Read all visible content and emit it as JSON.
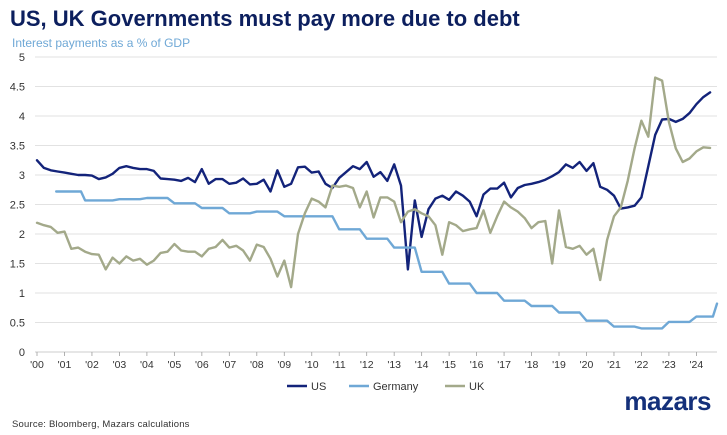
{
  "header": {
    "title": "US, UK Governments must pay more due to debt",
    "subtitle": "Interest payments as a % of GDP"
  },
  "footer": {
    "source": "Source: Bloomberg, Mazars calculations",
    "logo_text": "mazars"
  },
  "colors": {
    "title": "#0c1f5e",
    "subtitle": "#6fa8d6",
    "logo": "#14307a",
    "grid": "#d9d9d9"
  },
  "chart_data": {
    "type": "line",
    "title": "US, UK Governments must pay more due to debt",
    "subtitle": "Interest payments as a % of GDP",
    "xlabel": "",
    "ylabel": "",
    "xlim": [
      2000,
      2024.75
    ],
    "ylim": [
      0,
      5
    ],
    "yticks": [
      "0",
      "0.5",
      "1",
      "1.5",
      "2",
      "2.5",
      "3",
      "3.5",
      "4",
      "4.5",
      "5"
    ],
    "xticks": [
      "'00",
      "'01",
      "'02",
      "'03",
      "'04",
      "'05",
      "'06",
      "'07",
      "'08",
      "'09",
      "'10",
      "'11",
      "'12",
      "'13",
      "'14",
      "'15",
      "'16",
      "'17",
      "'18",
      "'19",
      "'20",
      "'21",
      "'22",
      "'23",
      "'24"
    ],
    "grid": "horizontal",
    "legend": "bottom-center",
    "series": [
      {
        "name": "US",
        "color": "#13237a",
        "points": [
          [
            2000,
            3.25
          ],
          [
            2000.25,
            3.12
          ],
          [
            2000.5,
            3.08
          ],
          [
            2000.75,
            3.06
          ],
          [
            2001,
            3.04
          ],
          [
            2001.25,
            3.02
          ],
          [
            2001.5,
            3.0
          ],
          [
            2001.75,
            3.0
          ],
          [
            2002,
            2.99
          ],
          [
            2002.25,
            2.93
          ],
          [
            2002.5,
            2.96
          ],
          [
            2002.75,
            3.02
          ],
          [
            2003,
            3.12
          ],
          [
            2003.25,
            3.15
          ],
          [
            2003.5,
            3.12
          ],
          [
            2003.75,
            3.1
          ],
          [
            2004,
            3.1
          ],
          [
            2004.25,
            3.07
          ],
          [
            2004.5,
            2.94
          ],
          [
            2004.75,
            2.93
          ],
          [
            2005,
            2.92
          ],
          [
            2005.25,
            2.9
          ],
          [
            2005.5,
            2.95
          ],
          [
            2005.75,
            2.88
          ],
          [
            2006,
            3.1
          ],
          [
            2006.25,
            2.85
          ],
          [
            2006.5,
            2.93
          ],
          [
            2006.75,
            2.93
          ],
          [
            2007,
            2.85
          ],
          [
            2007.25,
            2.87
          ],
          [
            2007.5,
            2.94
          ],
          [
            2007.75,
            2.84
          ],
          [
            2008,
            2.85
          ],
          [
            2008.25,
            2.92
          ],
          [
            2008.5,
            2.72
          ],
          [
            2008.75,
            3.08
          ],
          [
            2009,
            2.8
          ],
          [
            2009.25,
            2.85
          ],
          [
            2009.5,
            3.13
          ],
          [
            2009.75,
            3.14
          ],
          [
            2010,
            3.04
          ],
          [
            2010.25,
            3.06
          ],
          [
            2010.5,
            2.85
          ],
          [
            2010.75,
            2.78
          ],
          [
            2011,
            2.95
          ],
          [
            2011.25,
            3.05
          ],
          [
            2011.5,
            3.15
          ],
          [
            2011.75,
            3.1
          ],
          [
            2012,
            3.22
          ],
          [
            2012.25,
            2.97
          ],
          [
            2012.5,
            3.05
          ],
          [
            2012.75,
            2.9
          ],
          [
            2013,
            3.18
          ],
          [
            2013.25,
            2.82
          ],
          [
            2013.5,
            1.4
          ],
          [
            2013.75,
            2.57
          ],
          [
            2014,
            1.95
          ],
          [
            2014.25,
            2.42
          ],
          [
            2014.5,
            2.6
          ],
          [
            2014.75,
            2.65
          ],
          [
            2015,
            2.58
          ],
          [
            2015.25,
            2.72
          ],
          [
            2015.5,
            2.65
          ],
          [
            2015.75,
            2.55
          ],
          [
            2016,
            2.3
          ],
          [
            2016.25,
            2.67
          ],
          [
            2016.5,
            2.77
          ],
          [
            2016.75,
            2.77
          ],
          [
            2017,
            2.87
          ],
          [
            2017.25,
            2.62
          ],
          [
            2017.5,
            2.78
          ],
          [
            2017.75,
            2.83
          ],
          [
            2018,
            2.85
          ],
          [
            2018.25,
            2.88
          ],
          [
            2018.5,
            2.92
          ],
          [
            2018.75,
            2.98
          ],
          [
            2019,
            3.05
          ],
          [
            2019.25,
            3.18
          ],
          [
            2019.5,
            3.12
          ],
          [
            2019.75,
            3.22
          ],
          [
            2020,
            3.07
          ],
          [
            2020.25,
            3.2
          ],
          [
            2020.5,
            2.8
          ],
          [
            2020.75,
            2.75
          ],
          [
            2021,
            2.65
          ],
          [
            2021.25,
            2.43
          ],
          [
            2021.5,
            2.45
          ],
          [
            2021.75,
            2.48
          ],
          [
            2022,
            2.62
          ],
          [
            2022.25,
            3.15
          ],
          [
            2022.5,
            3.68
          ],
          [
            2022.75,
            3.94
          ],
          [
            2023,
            3.95
          ],
          [
            2023.25,
            3.9
          ],
          [
            2023.5,
            3.95
          ],
          [
            2023.75,
            4.05
          ],
          [
            2024,
            4.2
          ],
          [
            2024.25,
            4.32
          ],
          [
            2024.5,
            4.4
          ]
        ]
      },
      {
        "name": "Germany",
        "color": "#6fa8d6",
        "points": [
          [
            2000.7,
            2.72
          ],
          [
            2001.6,
            2.72
          ],
          [
            2001.75,
            2.57
          ],
          [
            2002.75,
            2.57
          ],
          [
            2003,
            2.59
          ],
          [
            2003.75,
            2.59
          ],
          [
            2004,
            2.61
          ],
          [
            2004.75,
            2.61
          ],
          [
            2005,
            2.52
          ],
          [
            2005.75,
            2.52
          ],
          [
            2006,
            2.44
          ],
          [
            2006.75,
            2.44
          ],
          [
            2007,
            2.35
          ],
          [
            2007.75,
            2.35
          ],
          [
            2008,
            2.38
          ],
          [
            2008.75,
            2.38
          ],
          [
            2009,
            2.3
          ],
          [
            2010.75,
            2.3
          ],
          [
            2011,
            2.08
          ],
          [
            2011.75,
            2.08
          ],
          [
            2012,
            1.92
          ],
          [
            2012.75,
            1.92
          ],
          [
            2013,
            1.77
          ],
          [
            2013.75,
            1.77
          ],
          [
            2014,
            1.36
          ],
          [
            2014.75,
            1.36
          ],
          [
            2015,
            1.16
          ],
          [
            2015.75,
            1.16
          ],
          [
            2016,
            1.0
          ],
          [
            2016.75,
            1.0
          ],
          [
            2017,
            0.87
          ],
          [
            2017.75,
            0.87
          ],
          [
            2018,
            0.78
          ],
          [
            2018.75,
            0.78
          ],
          [
            2019,
            0.67
          ],
          [
            2019.75,
            0.67
          ],
          [
            2020,
            0.53
          ],
          [
            2020.75,
            0.53
          ],
          [
            2021,
            0.43
          ],
          [
            2021.75,
            0.43
          ],
          [
            2022,
            0.4
          ],
          [
            2022.75,
            0.4
          ],
          [
            2023,
            0.51
          ],
          [
            2023.75,
            0.51
          ],
          [
            2024,
            0.6
          ],
          [
            2024.6,
            0.6
          ],
          [
            2024.75,
            0.82
          ]
        ]
      },
      {
        "name": "UK",
        "color": "#a3a98a",
        "points": [
          [
            2000,
            2.19
          ],
          [
            2000.25,
            2.15
          ],
          [
            2000.5,
            2.12
          ],
          [
            2000.75,
            2.02
          ],
          [
            2001,
            2.04
          ],
          [
            2001.25,
            1.75
          ],
          [
            2001.5,
            1.77
          ],
          [
            2001.75,
            1.7
          ],
          [
            2002,
            1.66
          ],
          [
            2002.25,
            1.65
          ],
          [
            2002.5,
            1.4
          ],
          [
            2002.75,
            1.6
          ],
          [
            2003,
            1.5
          ],
          [
            2003.25,
            1.62
          ],
          [
            2003.5,
            1.55
          ],
          [
            2003.75,
            1.58
          ],
          [
            2004,
            1.48
          ],
          [
            2004.25,
            1.55
          ],
          [
            2004.5,
            1.68
          ],
          [
            2004.75,
            1.7
          ],
          [
            2005,
            1.83
          ],
          [
            2005.25,
            1.72
          ],
          [
            2005.5,
            1.7
          ],
          [
            2005.75,
            1.7
          ],
          [
            2006,
            1.62
          ],
          [
            2006.25,
            1.75
          ],
          [
            2006.5,
            1.78
          ],
          [
            2006.75,
            1.9
          ],
          [
            2007,
            1.77
          ],
          [
            2007.25,
            1.8
          ],
          [
            2007.5,
            1.72
          ],
          [
            2007.75,
            1.55
          ],
          [
            2008,
            1.82
          ],
          [
            2008.25,
            1.78
          ],
          [
            2008.5,
            1.58
          ],
          [
            2008.75,
            1.28
          ],
          [
            2009,
            1.55
          ],
          [
            2009.25,
            1.1
          ],
          [
            2009.5,
            2.0
          ],
          [
            2009.75,
            2.35
          ],
          [
            2010,
            2.6
          ],
          [
            2010.25,
            2.55
          ],
          [
            2010.5,
            2.45
          ],
          [
            2010.75,
            2.82
          ],
          [
            2011,
            2.8
          ],
          [
            2011.25,
            2.82
          ],
          [
            2011.5,
            2.78
          ],
          [
            2011.75,
            2.45
          ],
          [
            2012,
            2.72
          ],
          [
            2012.25,
            2.28
          ],
          [
            2012.5,
            2.62
          ],
          [
            2012.75,
            2.62
          ],
          [
            2013,
            2.55
          ],
          [
            2013.25,
            2.2
          ],
          [
            2013.5,
            2.38
          ],
          [
            2013.75,
            2.42
          ],
          [
            2014,
            2.35
          ],
          [
            2014.25,
            2.3
          ],
          [
            2014.5,
            2.15
          ],
          [
            2014.75,
            1.65
          ],
          [
            2015,
            2.2
          ],
          [
            2015.25,
            2.15
          ],
          [
            2015.5,
            2.05
          ],
          [
            2015.75,
            2.08
          ],
          [
            2016,
            2.1
          ],
          [
            2016.25,
            2.4
          ],
          [
            2016.5,
            2.02
          ],
          [
            2016.75,
            2.3
          ],
          [
            2017,
            2.55
          ],
          [
            2017.25,
            2.45
          ],
          [
            2017.5,
            2.38
          ],
          [
            2017.75,
            2.27
          ],
          [
            2018,
            2.1
          ],
          [
            2018.25,
            2.2
          ],
          [
            2018.5,
            2.22
          ],
          [
            2018.75,
            1.5
          ],
          [
            2019,
            2.4
          ],
          [
            2019.25,
            1.78
          ],
          [
            2019.5,
            1.75
          ],
          [
            2019.75,
            1.8
          ],
          [
            2020,
            1.65
          ],
          [
            2020.25,
            1.75
          ],
          [
            2020.5,
            1.22
          ],
          [
            2020.75,
            1.9
          ],
          [
            2021,
            2.3
          ],
          [
            2021.25,
            2.45
          ],
          [
            2021.5,
            2.9
          ],
          [
            2021.75,
            3.45
          ],
          [
            2022,
            3.92
          ],
          [
            2022.25,
            3.65
          ],
          [
            2022.5,
            4.65
          ],
          [
            2022.75,
            4.6
          ],
          [
            2023,
            3.9
          ],
          [
            2023.25,
            3.45
          ],
          [
            2023.5,
            3.22
          ],
          [
            2023.75,
            3.28
          ],
          [
            2024,
            3.4
          ],
          [
            2024.25,
            3.47
          ],
          [
            2024.5,
            3.46
          ]
        ]
      }
    ]
  }
}
